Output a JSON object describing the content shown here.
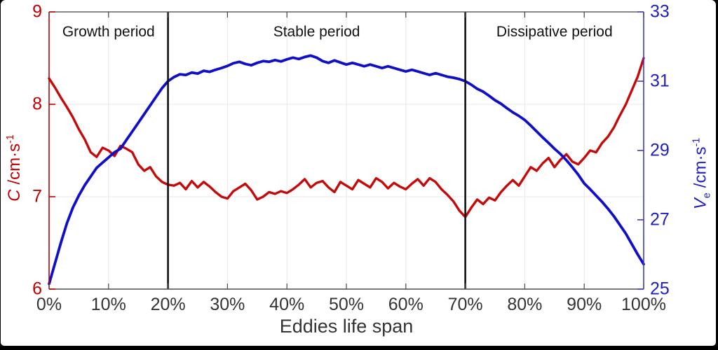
{
  "window": {
    "background": "#ffffff",
    "frame_color": "#000000"
  },
  "chart_data": {
    "type": "line",
    "title": "",
    "xlabel": "Eddies life span",
    "grid": {
      "color": "#e7e7e7",
      "vertical_percent": [
        10,
        20,
        30,
        40,
        50,
        60,
        70,
        80,
        90
      ],
      "horizontal_left_values": [
        7,
        8
      ]
    },
    "dividers_percent": [
      20,
      70
    ],
    "divider_color": "#111111",
    "annotations": {
      "growth": "Growth period",
      "stable": "Stable period",
      "dissipative": "Dissipative period"
    },
    "annotation_centers_percent": [
      10,
      45,
      85
    ],
    "x_axis": {
      "min": 0,
      "max": 100,
      "tick_values": [
        0,
        10,
        20,
        30,
        40,
        50,
        60,
        70,
        80,
        90,
        100
      ],
      "tick_labels": [
        "0%",
        "10%",
        "20%",
        "30%",
        "40%",
        "50%",
        "60%",
        "70%",
        "80%",
        "90%",
        "100%"
      ],
      "color": "#333333"
    },
    "left_axis": {
      "label_symbol": "C",
      "label_unit": "/cm·s",
      "label_exponent": "-1",
      "min": 6,
      "max": 9,
      "ticks": [
        6,
        7,
        8,
        9
      ],
      "color": "#c00000"
    },
    "right_axis": {
      "label_symbol": "V",
      "label_subscript": "e",
      "label_unit": "/cm·s",
      "label_exponent": "-1",
      "min": 25,
      "max": 33,
      "ticks": [
        25,
        27,
        29,
        31,
        33
      ],
      "color": "#1f1fc0"
    },
    "x_percent": [
      0,
      1,
      2,
      3,
      4,
      5,
      6,
      7,
      8,
      9,
      10,
      11,
      12,
      13,
      14,
      15,
      16,
      17,
      18,
      19,
      20,
      21,
      22,
      23,
      24,
      25,
      26,
      27,
      28,
      29,
      30,
      31,
      32,
      33,
      34,
      35,
      36,
      37,
      38,
      39,
      40,
      41,
      42,
      43,
      44,
      45,
      46,
      47,
      48,
      49,
      50,
      51,
      52,
      53,
      54,
      55,
      56,
      57,
      58,
      59,
      60,
      61,
      62,
      63,
      64,
      65,
      66,
      67,
      68,
      69,
      70,
      71,
      72,
      73,
      74,
      75,
      76,
      77,
      78,
      79,
      80,
      81,
      82,
      83,
      84,
      85,
      86,
      87,
      88,
      89,
      90,
      91,
      92,
      93,
      94,
      95,
      96,
      97,
      98,
      99,
      100
    ],
    "series": [
      {
        "name": "C",
        "axis": "left",
        "color": "#c40a0a",
        "width": 3.4,
        "values": [
          8.28,
          8.18,
          8.07,
          7.97,
          7.86,
          7.73,
          7.62,
          7.48,
          7.43,
          7.53,
          7.5,
          7.44,
          7.55,
          7.52,
          7.48,
          7.35,
          7.28,
          7.32,
          7.22,
          7.16,
          7.13,
          7.12,
          7.15,
          7.08,
          7.17,
          7.1,
          7.16,
          7.11,
          7.05,
          7.0,
          6.98,
          7.06,
          7.1,
          7.14,
          7.07,
          6.97,
          7.0,
          7.05,
          7.03,
          7.06,
          7.04,
          7.08,
          7.13,
          7.19,
          7.1,
          7.15,
          7.17,
          7.1,
          7.05,
          7.16,
          7.12,
          7.08,
          7.18,
          7.14,
          7.1,
          7.2,
          7.16,
          7.09,
          7.15,
          7.11,
          7.08,
          7.14,
          7.19,
          7.12,
          7.2,
          7.16,
          7.08,
          7.02,
          6.95,
          6.85,
          6.78,
          6.88,
          6.97,
          6.92,
          6.99,
          6.96,
          7.05,
          7.12,
          7.18,
          7.12,
          7.22,
          7.32,
          7.28,
          7.36,
          7.42,
          7.32,
          7.4,
          7.46,
          7.38,
          7.35,
          7.42,
          7.5,
          7.48,
          7.58,
          7.65,
          7.75,
          7.88,
          8.0,
          8.15,
          8.3,
          8.5
        ]
      },
      {
        "name": "Ve",
        "axis": "right",
        "color": "#0f0fc8",
        "width": 3.8,
        "values": [
          25.15,
          25.75,
          26.35,
          26.9,
          27.35,
          27.7,
          28.0,
          28.25,
          28.5,
          28.65,
          28.8,
          28.95,
          29.05,
          29.3,
          29.55,
          29.8,
          30.05,
          30.3,
          30.55,
          30.8,
          31.0,
          31.12,
          31.2,
          31.18,
          31.25,
          31.22,
          31.3,
          31.27,
          31.33,
          31.38,
          31.44,
          31.52,
          31.56,
          31.5,
          31.46,
          31.53,
          31.58,
          31.56,
          31.61,
          31.57,
          31.63,
          31.68,
          31.64,
          31.7,
          31.74,
          31.68,
          31.58,
          31.53,
          31.6,
          31.54,
          31.48,
          31.53,
          31.48,
          31.43,
          31.48,
          31.43,
          31.38,
          31.43,
          31.38,
          31.33,
          31.28,
          31.33,
          31.28,
          31.23,
          31.18,
          31.23,
          31.18,
          31.13,
          31.1,
          31.06,
          31.0,
          30.9,
          30.78,
          30.7,
          30.58,
          30.45,
          30.35,
          30.22,
          30.1,
          30.0,
          29.88,
          29.72,
          29.55,
          29.38,
          29.22,
          29.05,
          28.9,
          28.72,
          28.52,
          28.3,
          28.05,
          27.88,
          27.7,
          27.52,
          27.32,
          27.1,
          26.85,
          26.6,
          26.3,
          26.0,
          25.72
        ]
      }
    ]
  }
}
